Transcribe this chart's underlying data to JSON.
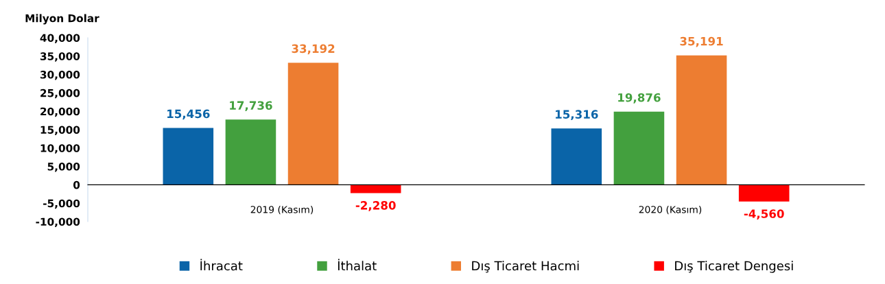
{
  "chart_data": {
    "type": "bar",
    "ylabel": "Milyon Dolar",
    "categories": [
      "2019 (Kasım)",
      "2020 (Kasım)"
    ],
    "series": [
      {
        "name": "İhracat",
        "color": "#0a64a8",
        "values": [
          15456,
          15316
        ],
        "value_labels": [
          "15,456",
          "15,316"
        ]
      },
      {
        "name": "İthalat",
        "color": "#43a03e",
        "values": [
          17736,
          19876
        ],
        "value_labels": [
          "17,736",
          "19,876"
        ]
      },
      {
        "name": "Dış Ticaret Hacmi",
        "color": "#ed7d31",
        "values": [
          33192,
          35191
        ],
        "value_labels": [
          "33,192",
          "35,191"
        ]
      },
      {
        "name": "Dış Ticaret Dengesi",
        "color": "#ff0000",
        "values": [
          -2280,
          -4560
        ],
        "value_labels": [
          "-2,280",
          "-4,560"
        ]
      }
    ],
    "ylim": [
      -10000,
      40000
    ],
    "yticks": [
      {
        "value": -10000,
        "label": "-10,000"
      },
      {
        "value": -5000,
        "label": "-5,000"
      },
      0,
      {
        "value": 5000,
        "label": "5,000"
      },
      {
        "value": 10000,
        "label": "10,000"
      },
      {
        "value": 15000,
        "label": "15,000"
      },
      {
        "value": 20000,
        "label": "20,000"
      },
      {
        "value": 25000,
        "label": "25,000"
      },
      {
        "value": 30000,
        "label": "30,000"
      },
      {
        "value": 35000,
        "label": "35,000"
      },
      {
        "value": 40000,
        "label": "40,000"
      }
    ],
    "grid": false,
    "legend": "bottom"
  }
}
